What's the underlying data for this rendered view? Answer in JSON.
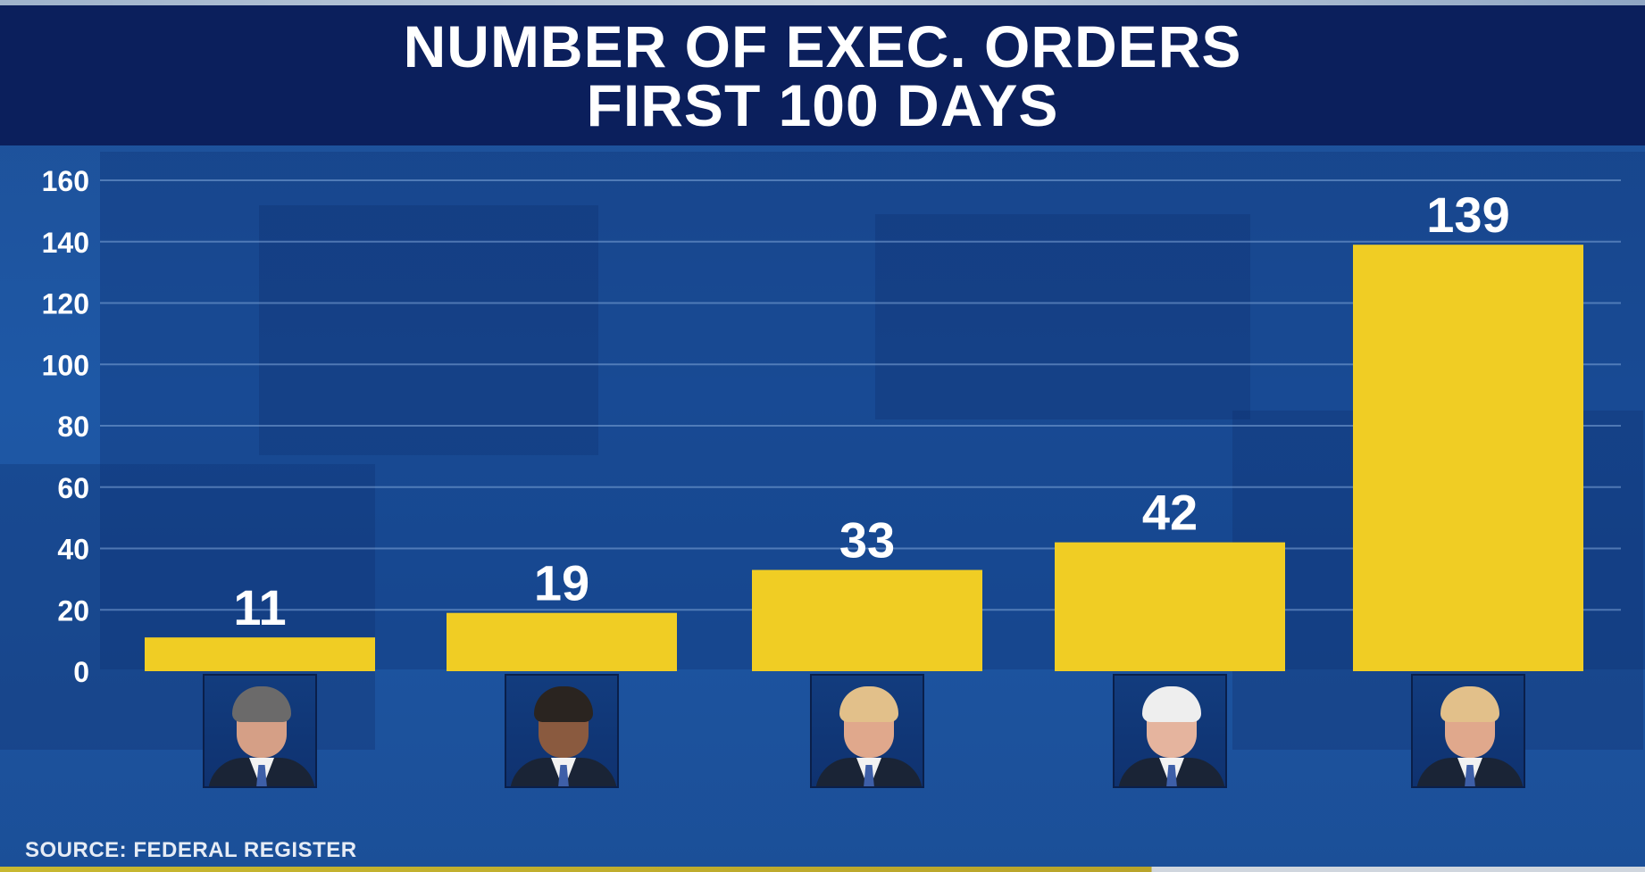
{
  "title": {
    "line1": "NUMBER OF EXEC. ORDERS",
    "line2": "FIRST 100 DAYS"
  },
  "source": "SOURCE: FEDERAL REGISTER",
  "colors": {
    "bar": "#f0cd24",
    "title_bg": "#0b1f5c",
    "gridline": "#7fa6d8",
    "text": "#ffffff"
  },
  "chart_data": {
    "type": "bar",
    "title": "NUMBER OF EXEC. ORDERS FIRST 100 DAYS",
    "xlabel": "",
    "ylabel": "",
    "ylim": [
      0,
      160
    ],
    "yticks": [
      0,
      20,
      40,
      60,
      80,
      100,
      120,
      140,
      160
    ],
    "grid": true,
    "legend": "none",
    "categories": [
      "portrait-1",
      "portrait-2",
      "portrait-3",
      "portrait-4",
      "portrait-5"
    ],
    "values": [
      11,
      19,
      33,
      42,
      139
    ],
    "data_labels": [
      "11",
      "19",
      "33",
      "42",
      "139"
    ]
  },
  "portraits": [
    {
      "icon": "president-portrait-1-icon",
      "hair": "#6b6a6a",
      "skin": "#d59f86"
    },
    {
      "icon": "president-portrait-2-icon",
      "hair": "#2a2420",
      "skin": "#8a5a3f"
    },
    {
      "icon": "president-portrait-3-icon",
      "hair": "#e2c08a",
      "skin": "#e0a88c"
    },
    {
      "icon": "president-portrait-4-icon",
      "hair": "#eeeeee",
      "skin": "#e5b49e"
    },
    {
      "icon": "president-portrait-5-icon",
      "hair": "#e2c08a",
      "skin": "#e0a88c"
    }
  ]
}
